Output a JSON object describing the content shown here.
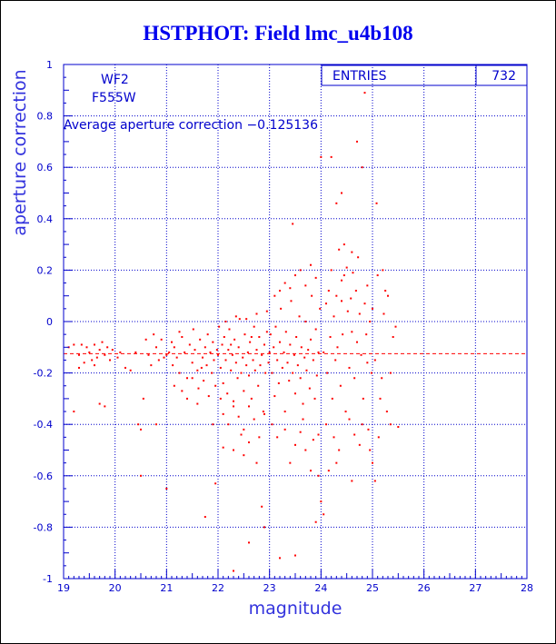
{
  "title": "HSTPHOT: Field lmc_u4b108",
  "chart_data": {
    "type": "scatter",
    "xlabel": "magnitude",
    "ylabel": "aperture correction",
    "xlim": [
      19,
      28
    ],
    "ylim": [
      -1,
      1
    ],
    "x_ticks": [
      "19",
      "20",
      "21",
      "22",
      "23",
      "24",
      "25",
      "26",
      "27",
      "28"
    ],
    "y_ticks": [
      "1",
      "0.8",
      "0.6",
      "0.4",
      "0.2",
      "0",
      "-0.2",
      "-0.4",
      "-0.6",
      "-0.8",
      "-1"
    ],
    "grid": true,
    "stats_box": {
      "label": "ENTRIES",
      "value": "732"
    },
    "annotations": [
      "WF2",
      "F555W",
      "Average aperture correction −0.125136"
    ],
    "reference_line": {
      "y": -0.125136,
      "style": "dashed"
    },
    "point_color": "#ff0000",
    "axis_color": "#0000cc",
    "grid_color": "#0000cc",
    "points": [
      [
        19.1,
        -0.1
      ],
      [
        19.2,
        -0.09
      ],
      [
        19.3,
        -0.13
      ],
      [
        19.35,
        -0.09
      ],
      [
        19.4,
        -0.16
      ],
      [
        19.45,
        -0.1
      ],
      [
        19.5,
        -0.12
      ],
      [
        19.55,
        -0.15
      ],
      [
        19.6,
        -0.09
      ],
      [
        19.65,
        -0.14
      ],
      [
        19.7,
        -0.11
      ],
      [
        19.75,
        -0.08
      ],
      [
        19.8,
        -0.13
      ],
      [
        19.85,
        -0.1
      ],
      [
        19.9,
        -0.15
      ],
      [
        19.95,
        -0.11
      ],
      [
        19.3,
        -0.18
      ],
      [
        19.6,
        -0.17
      ],
      [
        19.7,
        -0.32
      ],
      [
        19.8,
        -0.33
      ],
      [
        19.2,
        -0.35
      ],
      [
        20.05,
        -0.14
      ],
      [
        20.1,
        -0.12
      ],
      [
        20.2,
        -0.18
      ],
      [
        20.3,
        -0.19
      ],
      [
        20.4,
        -0.12
      ],
      [
        20.45,
        -0.4
      ],
      [
        20.6,
        -0.07
      ],
      [
        20.65,
        -0.13
      ],
      [
        20.7,
        -0.17
      ],
      [
        20.75,
        -0.05
      ],
      [
        20.8,
        -0.1
      ],
      [
        20.85,
        -0.15
      ],
      [
        20.9,
        -0.07
      ],
      [
        20.5,
        -0.42
      ],
      [
        20.55,
        -0.3
      ],
      [
        20.8,
        -0.4
      ],
      [
        20.5,
        -0.6
      ],
      [
        20.95,
        -0.14
      ],
      [
        21.0,
        -0.13
      ],
      [
        21.0,
        -0.65
      ],
      [
        21.05,
        -0.12
      ],
      [
        21.1,
        -0.08
      ],
      [
        21.12,
        -0.17
      ],
      [
        21.15,
        -0.1
      ],
      [
        21.2,
        -0.14
      ],
      [
        21.25,
        -0.2
      ],
      [
        21.3,
        -0.06
      ],
      [
        21.35,
        -0.12
      ],
      [
        21.4,
        -0.22
      ],
      [
        21.45,
        -0.09
      ],
      [
        21.5,
        -0.16
      ],
      [
        21.52,
        -0.03
      ],
      [
        21.55,
        -0.11
      ],
      [
        21.6,
        -0.19
      ],
      [
        21.62,
        -0.26
      ],
      [
        21.65,
        -0.07
      ],
      [
        21.7,
        -0.14
      ],
      [
        21.72,
        -0.23
      ],
      [
        21.75,
        -0.1
      ],
      [
        21.78,
        -0.17
      ],
      [
        21.8,
        -0.05
      ],
      [
        21.82,
        -0.29
      ],
      [
        21.85,
        -0.12
      ],
      [
        21.88,
        -0.2
      ],
      [
        21.9,
        -0.08
      ],
      [
        21.92,
        -0.15
      ],
      [
        21.95,
        -0.25
      ],
      [
        21.98,
        -0.11
      ],
      [
        21.3,
        -0.27
      ],
      [
        21.4,
        -0.3
      ],
      [
        21.6,
        -0.32
      ],
      [
        21.75,
        -0.76
      ],
      [
        21.9,
        -0.4
      ],
      [
        21.95,
        -0.63
      ],
      [
        21.15,
        -0.25
      ],
      [
        21.25,
        -0.04
      ],
      [
        21.5,
        -0.22
      ],
      [
        21.68,
        -0.18
      ],
      [
        22.0,
        -0.13
      ],
      [
        22.02,
        -0.02
      ],
      [
        22.05,
        -0.18
      ],
      [
        22.08,
        -0.09
      ],
      [
        22.1,
        -0.24
      ],
      [
        22.12,
        -0.06
      ],
      [
        22.15,
        -0.15
      ],
      [
        22.18,
        -0.28
      ],
      [
        22.2,
        -0.11
      ],
      [
        22.22,
        -0.03
      ],
      [
        22.25,
        -0.19
      ],
      [
        22.28,
        -0.13
      ],
      [
        22.3,
        -0.33
      ],
      [
        22.32,
        -0.07
      ],
      [
        22.35,
        -0.16
      ],
      [
        22.38,
        -0.22
      ],
      [
        22.4,
        -0.1
      ],
      [
        22.42,
        0.01
      ],
      [
        22.45,
        -0.2
      ],
      [
        22.48,
        -0.14
      ],
      [
        22.5,
        -0.27
      ],
      [
        22.52,
        -0.05
      ],
      [
        22.55,
        -0.17
      ],
      [
        22.58,
        -0.12
      ],
      [
        22.6,
        -0.21
      ],
      [
        22.62,
        -0.08
      ],
      [
        22.65,
        -0.3
      ],
      [
        22.68,
        -0.15
      ],
      [
        22.7,
        -0.02
      ],
      [
        22.72,
        -0.19
      ],
      [
        22.75,
        -0.11
      ],
      [
        22.78,
        -0.25
      ],
      [
        22.8,
        -0.06
      ],
      [
        22.82,
        -0.17
      ],
      [
        22.85,
        -0.13
      ],
      [
        22.88,
        -0.35
      ],
      [
        22.9,
        -0.09
      ],
      [
        22.92,
        -0.2
      ],
      [
        22.95,
        -0.04
      ],
      [
        22.98,
        -0.16
      ],
      [
        22.05,
        -0.3
      ],
      [
        22.1,
        -0.36
      ],
      [
        22.2,
        -0.4
      ],
      [
        22.3,
        -0.31
      ],
      [
        22.4,
        -0.37
      ],
      [
        22.5,
        -0.42
      ],
      [
        22.6,
        -0.33
      ],
      [
        22.7,
        -0.38
      ],
      [
        22.8,
        -0.45
      ],
      [
        22.9,
        -0.36
      ],
      [
        22.15,
        0.0
      ],
      [
        22.35,
        0.02
      ],
      [
        22.55,
        0.01
      ],
      [
        22.75,
        0.03
      ],
      [
        22.95,
        0.04
      ],
      [
        22.3,
        -0.5
      ],
      [
        22.5,
        -0.52
      ],
      [
        22.6,
        -0.47
      ],
      [
        22.75,
        -0.55
      ],
      [
        22.85,
        -0.72
      ],
      [
        22.9,
        -0.8
      ],
      [
        22.6,
        -0.86
      ],
      [
        22.3,
        -0.97
      ],
      [
        22.1,
        -0.49
      ],
      [
        22.45,
        -0.44
      ],
      [
        22.65,
        -0.06
      ],
      [
        22.25,
        -0.09
      ],
      [
        23.0,
        -0.12
      ],
      [
        23.02,
        -0.05
      ],
      [
        23.05,
        -0.2
      ],
      [
        23.08,
        -0.1
      ],
      [
        23.1,
        -0.29
      ],
      [
        23.12,
        -0.02
      ],
      [
        23.15,
        -0.15
      ],
      [
        23.18,
        -0.24
      ],
      [
        23.2,
        -0.08
      ],
      [
        23.22,
        0.05
      ],
      [
        23.25,
        -0.18
      ],
      [
        23.28,
        -0.12
      ],
      [
        23.3,
        -0.35
      ],
      [
        23.32,
        -0.04
      ],
      [
        23.35,
        -0.16
      ],
      [
        23.38,
        -0.23
      ],
      [
        23.4,
        -0.09
      ],
      [
        23.42,
        0.08
      ],
      [
        23.45,
        -0.2
      ],
      [
        23.48,
        -0.13
      ],
      [
        23.5,
        -0.28
      ],
      [
        23.52,
        -0.06
      ],
      [
        23.55,
        -0.17
      ],
      [
        23.58,
        0.02
      ],
      [
        23.6,
        -0.22
      ],
      [
        23.62,
        -0.1
      ],
      [
        23.65,
        -0.32
      ],
      [
        23.68,
        -0.14
      ],
      [
        23.7,
        0.0
      ],
      [
        23.72,
        -0.19
      ],
      [
        23.75,
        -0.11
      ],
      [
        23.78,
        -0.26
      ],
      [
        23.8,
        -0.07
      ],
      [
        23.82,
        0.1
      ],
      [
        23.85,
        -0.15
      ],
      [
        23.88,
        -0.3
      ],
      [
        23.9,
        -0.03
      ],
      [
        23.92,
        -0.21
      ],
      [
        23.95,
        -0.12
      ],
      [
        23.98,
        0.05
      ],
      [
        23.1,
        0.1
      ],
      [
        23.2,
        0.12
      ],
      [
        23.3,
        0.15
      ],
      [
        23.4,
        0.13
      ],
      [
        23.5,
        0.18
      ],
      [
        23.6,
        0.2
      ],
      [
        23.7,
        0.14
      ],
      [
        23.8,
        0.22
      ],
      [
        23.9,
        0.17
      ],
      [
        23.45,
        0.38
      ],
      [
        23.05,
        -0.4
      ],
      [
        23.15,
        -0.45
      ],
      [
        23.3,
        -0.42
      ],
      [
        23.5,
        -0.48
      ],
      [
        23.6,
        -0.43
      ],
      [
        23.7,
        -0.5
      ],
      [
        23.85,
        -0.46
      ],
      [
        23.95,
        -0.44
      ],
      [
        23.4,
        -0.55
      ],
      [
        23.8,
        -0.58
      ],
      [
        23.9,
        -0.78
      ],
      [
        23.5,
        -0.91
      ],
      [
        23.2,
        -0.92
      ],
      [
        23.95,
        -0.6
      ],
      [
        23.65,
        -0.38
      ],
      [
        24.0,
        0.64
      ],
      [
        24.05,
        -0.12
      ],
      [
        24.1,
        0.07
      ],
      [
        24.12,
        -0.2
      ],
      [
        24.15,
        0.12
      ],
      [
        24.18,
        -0.06
      ],
      [
        24.2,
        0.2
      ],
      [
        24.22,
        -0.3
      ],
      [
        24.25,
        0.02
      ],
      [
        24.28,
        -0.15
      ],
      [
        24.3,
        0.1
      ],
      [
        24.32,
        -0.1
      ],
      [
        24.35,
        0.28
      ],
      [
        24.38,
        -0.25
      ],
      [
        24.4,
        0.16
      ],
      [
        24.42,
        -0.05
      ],
      [
        24.45,
        0.18
      ],
      [
        24.48,
        -0.35
      ],
      [
        24.5,
        0.21
      ],
      [
        24.52,
        0.04
      ],
      [
        24.55,
        -0.18
      ],
      [
        24.58,
        0.09
      ],
      [
        24.6,
        -0.04
      ],
      [
        24.62,
        0.19
      ],
      [
        24.65,
        -0.22
      ],
      [
        24.68,
        0.12
      ],
      [
        24.7,
        -0.08
      ],
      [
        24.72,
        0.25
      ],
      [
        24.75,
        0.03
      ],
      [
        24.78,
        -0.13
      ],
      [
        24.8,
        0.6
      ],
      [
        24.82,
        -0.3
      ],
      [
        24.85,
        0.07
      ],
      [
        24.88,
        -0.05
      ],
      [
        24.9,
        0.14
      ],
      [
        24.92,
        -0.42
      ],
      [
        24.95,
        0.0
      ],
      [
        24.98,
        -0.2
      ],
      [
        24.3,
        0.46
      ],
      [
        24.4,
        0.5
      ],
      [
        24.45,
        0.3
      ],
      [
        24.6,
        0.27
      ],
      [
        24.7,
        0.7
      ],
      [
        24.85,
        0.89
      ],
      [
        24.2,
        0.64
      ],
      [
        24.1,
        -0.4
      ],
      [
        24.25,
        -0.45
      ],
      [
        24.35,
        -0.5
      ],
      [
        24.55,
        -0.38
      ],
      [
        24.65,
        -0.44
      ],
      [
        24.75,
        -0.48
      ],
      [
        24.95,
        -0.5
      ],
      [
        24.15,
        -0.58
      ],
      [
        24.05,
        -0.75
      ],
      [
        24.3,
        -0.55
      ],
      [
        24.6,
        -0.62
      ],
      [
        24.0,
        -0.7
      ],
      [
        24.8,
        -0.4
      ],
      [
        24.4,
        0.08
      ],
      [
        24.9,
        -0.16
      ],
      [
        25.0,
        0.05
      ],
      [
        25.05,
        -0.15
      ],
      [
        25.1,
        0.18
      ],
      [
        25.15,
        -0.3
      ],
      [
        25.2,
        0.2
      ],
      [
        25.25,
        0.12
      ],
      [
        25.3,
        0.1
      ],
      [
        25.35,
        -0.4
      ],
      [
        25.4,
        -0.06
      ],
      [
        25.5,
        -0.41
      ],
      [
        25.08,
        0.46
      ],
      [
        25.12,
        -0.45
      ],
      [
        25.18,
        -0.22
      ],
      [
        25.22,
        0.03
      ],
      [
        25.28,
        -0.35
      ],
      [
        25.05,
        -0.62
      ],
      [
        25.0,
        -0.55
      ],
      [
        25.35,
        -0.2
      ],
      [
        25.45,
        -0.02
      ]
    ]
  }
}
